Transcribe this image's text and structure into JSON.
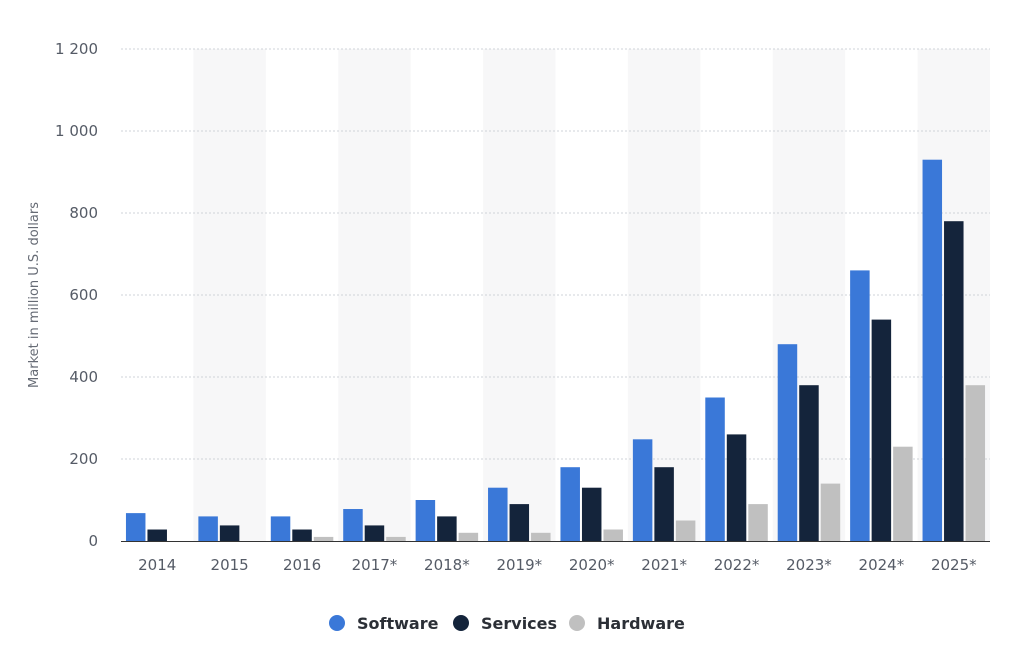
{
  "chart_data": {
    "type": "bar",
    "ylabel": "Market in million U.S. dollars",
    "ylim": [
      0,
      1200
    ],
    "yticks": [
      0,
      200,
      400,
      600,
      800,
      1000,
      1200
    ],
    "ytick_labels": [
      "0",
      "200",
      "400",
      "600",
      "800",
      "1 000",
      "1 200"
    ],
    "grid": true,
    "legend_position": "bottom",
    "categories": [
      "2014",
      "2015",
      "2016",
      "2017*",
      "2018*",
      "2019*",
      "2020*",
      "2021*",
      "2022*",
      "2023*",
      "2024*",
      "2025*"
    ],
    "series": [
      {
        "name": "Software",
        "color": "#3a78d8",
        "values": [
          68,
          60,
          60,
          78,
          100,
          130,
          180,
          248,
          350,
          480,
          660,
          930
        ]
      },
      {
        "name": "Services",
        "color": "#14243b",
        "values": [
          28,
          38,
          28,
          38,
          60,
          90,
          130,
          180,
          260,
          380,
          540,
          780
        ]
      },
      {
        "name": "Hardware",
        "color": "#c0c0c0",
        "values": [
          0,
          0,
          10,
          10,
          20,
          20,
          28,
          50,
          90,
          140,
          230,
          380
        ]
      }
    ]
  }
}
